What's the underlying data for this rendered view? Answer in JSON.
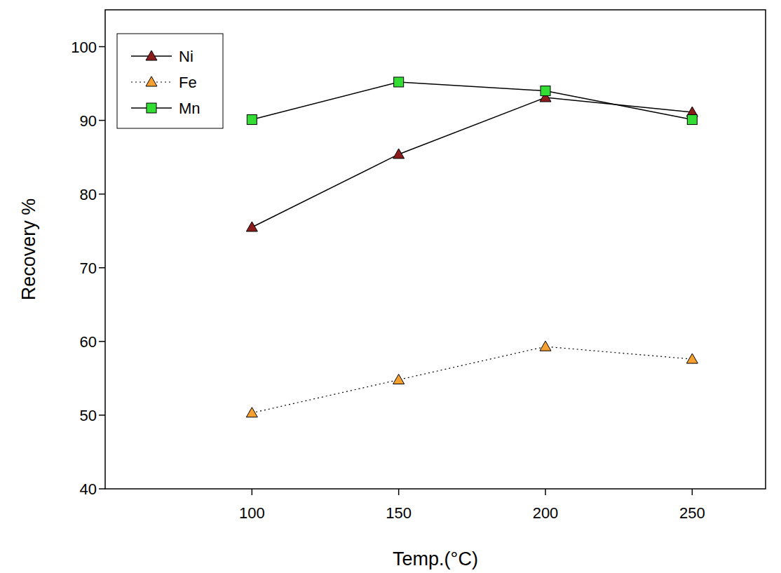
{
  "chart_data": {
    "type": "line",
    "x_label": "Temp.(°C)",
    "y_label": "Recovery %",
    "x": [
      100,
      150,
      200,
      250
    ],
    "xlim": [
      50,
      275
    ],
    "xticks": [
      100,
      150,
      200,
      250
    ],
    "ylim": [
      40,
      105
    ],
    "yticks": [
      40,
      50,
      60,
      70,
      80,
      90,
      100
    ],
    "grid": false,
    "legend": "upper left",
    "series": [
      {
        "name": "Ni",
        "color": "#8b1c1c",
        "marker": "triangle",
        "line_style": "solid",
        "values": [
          75.5,
          85.4,
          93.1,
          91.1
        ]
      },
      {
        "name": "Fe",
        "color": "#f5a030",
        "marker": "triangle",
        "line_style": "dotted",
        "values": [
          50.3,
          54.8,
          59.3,
          57.6
        ]
      },
      {
        "name": "Mn",
        "color": "#33dd33",
        "marker": "square",
        "line_style": "solid",
        "values": [
          90.1,
          95.2,
          94.0,
          90.1
        ]
      }
    ]
  }
}
